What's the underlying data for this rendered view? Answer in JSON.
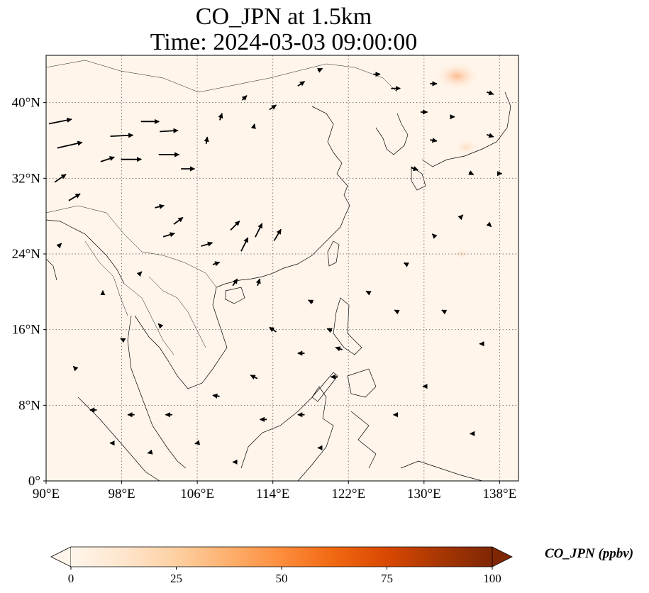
{
  "title": {
    "line1": "CO_JPN at 1.5km",
    "line2": "Time: 2024-03-03 09:00:00"
  },
  "map": {
    "extent": {
      "lon": [
        90,
        140
      ],
      "lat": [
        0,
        45
      ]
    },
    "lon_ticks": [
      {
        "value": 90,
        "label": "90°E"
      },
      {
        "value": 98,
        "label": "98°E"
      },
      {
        "value": 106,
        "label": "106°E"
      },
      {
        "value": 114,
        "label": "114°E"
      },
      {
        "value": 122,
        "label": "122°E"
      },
      {
        "value": 130,
        "label": "130°E"
      },
      {
        "value": 138,
        "label": "138°E"
      }
    ],
    "lat_ticks": [
      {
        "value": 0,
        "label": "0°"
      },
      {
        "value": 8,
        "label": "8°N"
      },
      {
        "value": 16,
        "label": "16°N"
      },
      {
        "value": 24,
        "label": "24°N"
      },
      {
        "value": 32,
        "label": "32°N"
      },
      {
        "value": 40,
        "label": "40°N"
      }
    ],
    "gridlines": true,
    "gridline_style": "dotted",
    "background_color": "#fff5eb",
    "land_outline_color": "#000000"
  },
  "colorbar": {
    "label": "CO_JPN (ppbv)",
    "ticks": [
      {
        "value": 0,
        "label": "0"
      },
      {
        "value": 25,
        "label": "25"
      },
      {
        "value": 50,
        "label": "50"
      },
      {
        "value": 75,
        "label": "75"
      },
      {
        "value": 100,
        "label": "100"
      }
    ],
    "range": [
      0,
      100
    ],
    "extend": "both",
    "colormap": [
      "#fff5eb",
      "#fee6ce",
      "#fdd0a2",
      "#fdae6b",
      "#fd8d3c",
      "#f16913",
      "#d94801",
      "#a63603",
      "#7f2704"
    ]
  },
  "chart_data": {
    "type": "heatmap",
    "title": "CO_JPN at 1.5km Time: 2024-03-03 09:00:00",
    "variable": "CO_JPN",
    "units": "ppbv",
    "level": "1.5km",
    "xlim": [
      90,
      140
    ],
    "ylim": [
      0,
      45
    ],
    "hotspots": [
      {
        "lon": 133.5,
        "lat": 42.8,
        "value": 18
      },
      {
        "lon": 134.5,
        "lat": 35.3,
        "value": 8
      },
      {
        "lon": 134,
        "lat": 24,
        "value": 3
      }
    ],
    "wind_vectors": [
      {
        "lon": 91.5,
        "lat": 38,
        "u": 10,
        "v": 2
      },
      {
        "lon": 92.5,
        "lat": 35.5,
        "u": 11,
        "v": 2.5
      },
      {
        "lon": 91.5,
        "lat": 32,
        "u": 5,
        "v": 3.5
      },
      {
        "lon": 93,
        "lat": 30,
        "u": 5,
        "v": 3
      },
      {
        "lon": 96.5,
        "lat": 34,
        "u": 6,
        "v": 2
      },
      {
        "lon": 98,
        "lat": 36.5,
        "u": 10,
        "v": 0.5
      },
      {
        "lon": 99,
        "lat": 34,
        "u": 9,
        "v": 0
      },
      {
        "lon": 101,
        "lat": 38,
        "u": 8,
        "v": 0
      },
      {
        "lon": 103,
        "lat": 37,
        "u": 8,
        "v": 0.5
      },
      {
        "lon": 103,
        "lat": 34.5,
        "u": 9,
        "v": 0
      },
      {
        "lon": 105,
        "lat": 33,
        "u": 6,
        "v": 0
      },
      {
        "lon": 102,
        "lat": 29,
        "u": 4,
        "v": 1
      },
      {
        "lon": 103,
        "lat": 26,
        "u": 5,
        "v": 1.5
      },
      {
        "lon": 104,
        "lat": 27.5,
        "u": 4,
        "v": 3
      },
      {
        "lon": 107,
        "lat": 25,
        "u": 5,
        "v": 1.5
      },
      {
        "lon": 110,
        "lat": 27,
        "u": 4,
        "v": 4
      },
      {
        "lon": 111,
        "lat": 25,
        "u": 3,
        "v": 6
      },
      {
        "lon": 112.5,
        "lat": 26.5,
        "u": 3,
        "v": 6
      },
      {
        "lon": 114.5,
        "lat": 26,
        "u": 3,
        "v": 5
      },
      {
        "lon": 110,
        "lat": 21,
        "u": 2,
        "v": 3
      },
      {
        "lon": 108,
        "lat": 23,
        "u": 3,
        "v": 1
      },
      {
        "lon": 112.5,
        "lat": 21,
        "u": 1,
        "v": 3
      },
      {
        "lon": 107,
        "lat": 36,
        "u": 0.5,
        "v": 3
      },
      {
        "lon": 108.5,
        "lat": 38.5,
        "u": 1,
        "v": 3
      },
      {
        "lon": 111,
        "lat": 40.5,
        "u": 2,
        "v": 2
      },
      {
        "lon": 112,
        "lat": 37.5,
        "u": 0.5,
        "v": 2
      },
      {
        "lon": 114,
        "lat": 39.5,
        "u": 3,
        "v": 2
      },
      {
        "lon": 117,
        "lat": 42,
        "u": 3,
        "v": 2
      },
      {
        "lon": 119,
        "lat": 43.5,
        "u": 2,
        "v": 1
      },
      {
        "lon": 125,
        "lat": 43,
        "u": 3,
        "v": 0
      },
      {
        "lon": 127,
        "lat": 41.5,
        "u": 4,
        "v": 0
      },
      {
        "lon": 131,
        "lat": 42,
        "u": 3,
        "v": 0
      },
      {
        "lon": 137,
        "lat": 41,
        "u": 3,
        "v": -1
      },
      {
        "lon": 130,
        "lat": 39,
        "u": 3,
        "v": 0
      },
      {
        "lon": 133,
        "lat": 38.5,
        "u": 2,
        "v": 0
      },
      {
        "lon": 137,
        "lat": 36.5,
        "u": 3,
        "v": -1
      },
      {
        "lon": 131,
        "lat": 36,
        "u": 3,
        "v": -0.5
      },
      {
        "lon": 129,
        "lat": 33,
        "u": 3,
        "v": -1
      },
      {
        "lon": 135,
        "lat": 32.5,
        "u": 2,
        "v": -1
      },
      {
        "lon": 138,
        "lat": 32.5,
        "u": 2,
        "v": 0
      },
      {
        "lon": 134,
        "lat": 28,
        "u": 1,
        "v": 1
      },
      {
        "lon": 137,
        "lat": 27,
        "u": 1,
        "v": -1
      },
      {
        "lon": 131,
        "lat": 26,
        "u": -1,
        "v": 1
      },
      {
        "lon": 128,
        "lat": 23,
        "u": -1,
        "v": 0.5
      },
      {
        "lon": 124,
        "lat": 20,
        "u": -1,
        "v": 0.5
      },
      {
        "lon": 118,
        "lat": 19,
        "u": -2,
        "v": 1
      },
      {
        "lon": 120,
        "lat": 16,
        "u": -2,
        "v": 1
      },
      {
        "lon": 114,
        "lat": 16,
        "u": -3,
        "v": 2
      },
      {
        "lon": 117,
        "lat": 13.5,
        "u": -3,
        "v": 0
      },
      {
        "lon": 121,
        "lat": 14,
        "u": -3,
        "v": 1
      },
      {
        "lon": 120.5,
        "lat": 11,
        "u": -3,
        "v": 0
      },
      {
        "lon": 112,
        "lat": 11,
        "u": -3,
        "v": 1.5
      },
      {
        "lon": 108,
        "lat": 9,
        "u": -3,
        "v": 0.5
      },
      {
        "lon": 113,
        "lat": 6.5,
        "u": -3,
        "v": 0
      },
      {
        "lon": 117,
        "lat": 7,
        "u": -3,
        "v": 0
      },
      {
        "lon": 119,
        "lat": 3.5,
        "u": -2,
        "v": 0
      },
      {
        "lon": 103,
        "lat": 7,
        "u": -3,
        "v": 0
      },
      {
        "lon": 99,
        "lat": 7,
        "u": -3,
        "v": 0
      },
      {
        "lon": 95,
        "lat": 7.5,
        "u": -3,
        "v": 0
      },
      {
        "lon": 97,
        "lat": 4,
        "u": -2,
        "v": 0
      },
      {
        "lon": 101,
        "lat": 3,
        "u": -2,
        "v": -0.5
      },
      {
        "lon": 106,
        "lat": 4,
        "u": -2,
        "v": -0.5
      },
      {
        "lon": 110,
        "lat": 2,
        "u": -2,
        "v": 0
      },
      {
        "lon": 93,
        "lat": 12,
        "u": -1,
        "v": 1
      },
      {
        "lon": 98,
        "lat": 15,
        "u": -1,
        "v": 0.5
      },
      {
        "lon": 102,
        "lat": 16.5,
        "u": -1,
        "v": 1
      },
      {
        "lon": 96,
        "lat": 20,
        "u": 0,
        "v": 1
      },
      {
        "lon": 100,
        "lat": 22,
        "u": 1,
        "v": 1
      },
      {
        "lon": 91.5,
        "lat": 25,
        "u": 1,
        "v": 1
      },
      {
        "lon": 127,
        "lat": 7,
        "u": -2,
        "v": 0
      },
      {
        "lon": 130,
        "lat": 10,
        "u": -1,
        "v": 0
      },
      {
        "lon": 135,
        "lat": 5,
        "u": -1,
        "v": 0
      },
      {
        "lon": 127,
        "lat": 18,
        "u": -1,
        "v": 0.5
      },
      {
        "lon": 132,
        "lat": 18,
        "u": -1,
        "v": 0.5
      },
      {
        "lon": 136,
        "lat": 14.5,
        "u": -1,
        "v": 0
      }
    ]
  }
}
